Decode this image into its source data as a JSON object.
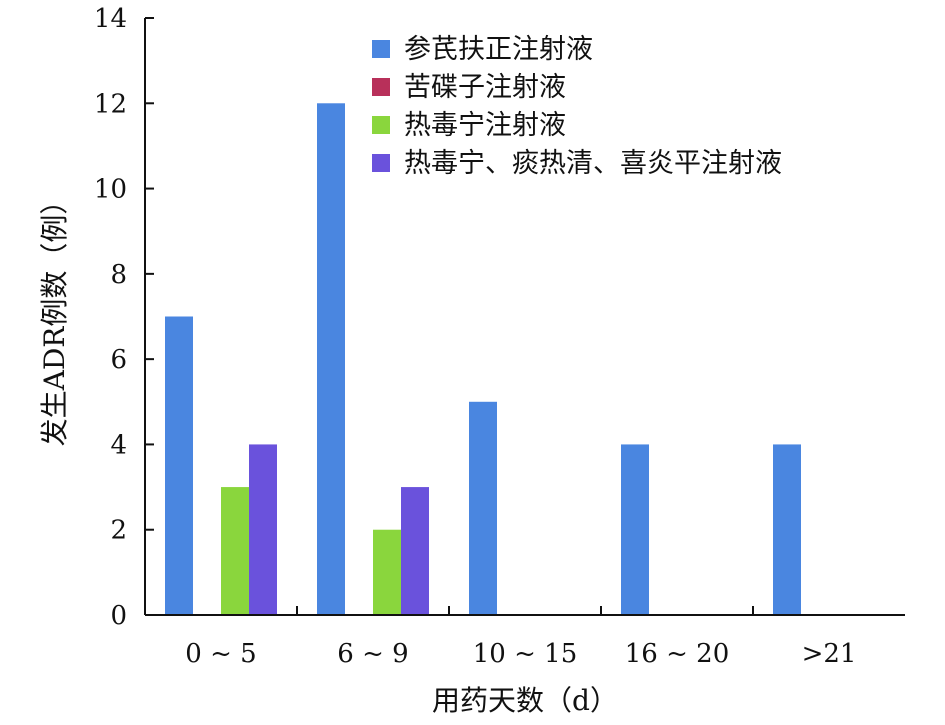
{
  "chart_data": {
    "type": "bar",
    "title": "",
    "xlabel": "用药天数（d）",
    "ylabel": "发生ADR例数（例）",
    "categories": [
      "0 ~ 5",
      "6 ~ 9",
      "10 ~ 15",
      "16 ~ 20",
      ">21"
    ],
    "series": [
      {
        "name": "参芪扶正注射液",
        "color": "#4a86e0",
        "values": [
          7,
          12,
          5,
          4,
          4
        ]
      },
      {
        "name": "苦碟子注射液",
        "color": "#b8305a",
        "values": [
          0,
          0,
          0,
          0,
          0
        ]
      },
      {
        "name": "热毒宁注射液",
        "color": "#8ad63d",
        "values": [
          3,
          2,
          0,
          0,
          0
        ]
      },
      {
        "name": "热毒宁、痰热清、喜炎平注射液",
        "color": "#6a52dc",
        "values": [
          4,
          3,
          0,
          0,
          0
        ]
      }
    ],
    "ylim": [
      0,
      14
    ],
    "yticks": [
      0,
      2,
      4,
      6,
      8,
      10,
      12,
      14
    ],
    "grid": false,
    "legend_position": "top-right"
  }
}
